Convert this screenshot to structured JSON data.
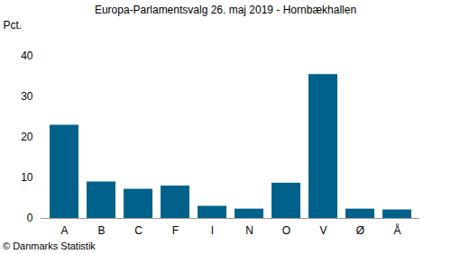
{
  "chart_data": {
    "type": "bar",
    "title": "Europa-Parlamentsvalg 26. maj 2019 - Hornbækhallen",
    "y_label": "Pct.",
    "caption": "© Danmarks Statistik",
    "categories": [
      "A",
      "B",
      "C",
      "F",
      "I",
      "N",
      "O",
      "V",
      "Ø",
      "Å"
    ],
    "values": [
      23,
      9,
      7.2,
      8,
      3,
      2.3,
      8.7,
      35.5,
      2.3,
      2.1
    ],
    "color": "#00628b",
    "ylim": [
      0,
      40
    ],
    "yticks": [
      0,
      10,
      20,
      30,
      40
    ],
    "grid": false
  }
}
